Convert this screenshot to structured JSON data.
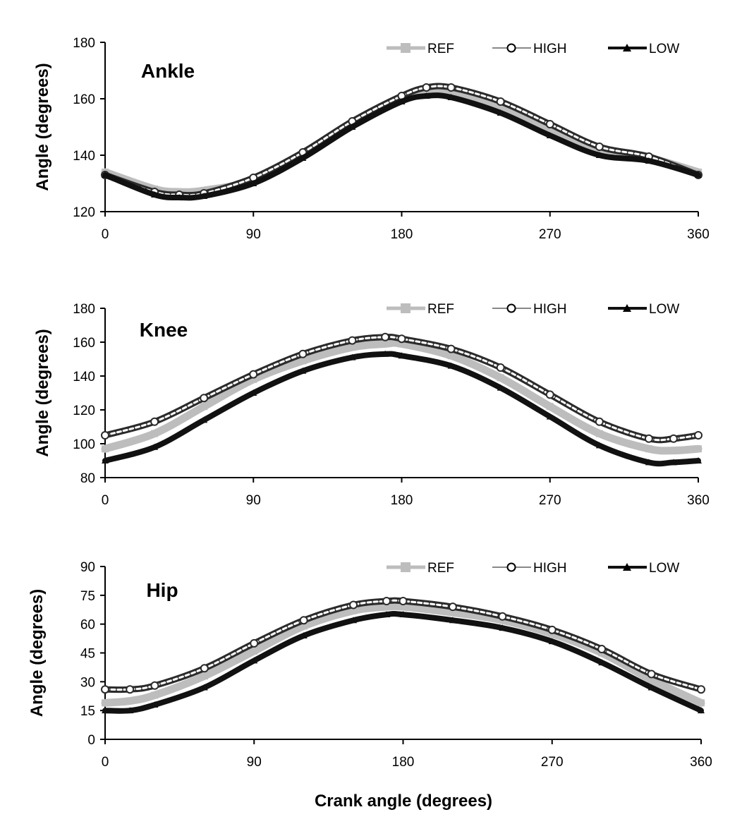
{
  "colors": {
    "REF": "#bdbdbd",
    "HIGH": "#2b2b2b",
    "LOW": "#111111",
    "axis": "#000000"
  },
  "legend": [
    "REF",
    "HIGH",
    "LOW"
  ],
  "xlabel": "Crank angle (degrees)",
  "chart_data": [
    {
      "type": "line",
      "title": "Ankle",
      "ylabel": "Angle (degrees)",
      "xlim": [
        0,
        360
      ],
      "ylim": [
        120,
        180
      ],
      "xticks": [
        0,
        90,
        180,
        270,
        360
      ],
      "yticks": [
        120,
        140,
        160,
        180
      ],
      "legend_position": "top-right",
      "grid": false,
      "x": [
        0,
        30,
        45,
        60,
        90,
        120,
        150,
        180,
        195,
        210,
        240,
        270,
        300,
        330,
        360
      ],
      "series": [
        {
          "name": "REF",
          "values": [
            134,
            128,
            127,
            127.5,
            131,
            140,
            151,
            160,
            162.5,
            162.5,
            157,
            149,
            141,
            139,
            134
          ]
        },
        {
          "name": "HIGH",
          "values": [
            133,
            127,
            126,
            126.5,
            132,
            141,
            152,
            161,
            164,
            164,
            159,
            151,
            143,
            139.5,
            133
          ]
        },
        {
          "name": "LOW",
          "values": [
            133,
            126,
            125,
            125.5,
            130,
            139,
            150,
            159,
            161,
            160.5,
            155,
            147,
            140,
            138,
            133
          ]
        }
      ]
    },
    {
      "type": "line",
      "title": "Knee",
      "ylabel": "Angle (degrees)",
      "xlim": [
        0,
        360
      ],
      "ylim": [
        80,
        180
      ],
      "xticks": [
        0,
        90,
        180,
        270,
        360
      ],
      "yticks": [
        80,
        100,
        120,
        140,
        160,
        180
      ],
      "legend_position": "top-right",
      "grid": false,
      "x": [
        0,
        30,
        60,
        90,
        120,
        150,
        170,
        180,
        210,
        240,
        270,
        300,
        330,
        345,
        360
      ],
      "series": [
        {
          "name": "REF",
          "values": [
            97,
            106,
            122,
            138,
            149,
            157,
            159,
            159,
            152,
            139,
            122,
            106,
            97,
            96,
            97
          ]
        },
        {
          "name": "HIGH",
          "values": [
            105,
            113,
            127,
            141,
            153,
            161,
            163,
            162,
            156,
            145,
            129,
            113,
            103,
            103,
            105
          ]
        },
        {
          "name": "LOW",
          "values": [
            90,
            98,
            114,
            130,
            143,
            151,
            153,
            152,
            146,
            133,
            116,
            99,
            89,
            89,
            90
          ]
        }
      ]
    },
    {
      "type": "line",
      "title": "Hip",
      "ylabel": "Angle (degrees)",
      "xlim": [
        0,
        360
      ],
      "ylim": [
        0,
        90
      ],
      "xticks": [
        0,
        90,
        180,
        270,
        360
      ],
      "yticks": [
        0,
        15,
        30,
        45,
        60,
        75,
        90
      ],
      "legend_position": "top-right",
      "grid": false,
      "x": [
        0,
        15,
        30,
        60,
        90,
        120,
        150,
        170,
        180,
        210,
        240,
        270,
        300,
        330,
        360
      ],
      "series": [
        {
          "name": "REF",
          "values": [
            19,
            20,
            23,
            33,
            46,
            59,
            67,
            69,
            69,
            66,
            62,
            55,
            45,
            31,
            19
          ]
        },
        {
          "name": "HIGH",
          "values": [
            26,
            26,
            28,
            37,
            50,
            62,
            70,
            72,
            72,
            69,
            64,
            57,
            47,
            34,
            26
          ]
        },
        {
          "name": "LOW",
          "values": [
            15,
            15,
            18,
            27,
            41,
            54,
            62,
            65,
            65,
            62,
            58,
            51,
            40,
            27,
            15
          ]
        }
      ]
    }
  ]
}
